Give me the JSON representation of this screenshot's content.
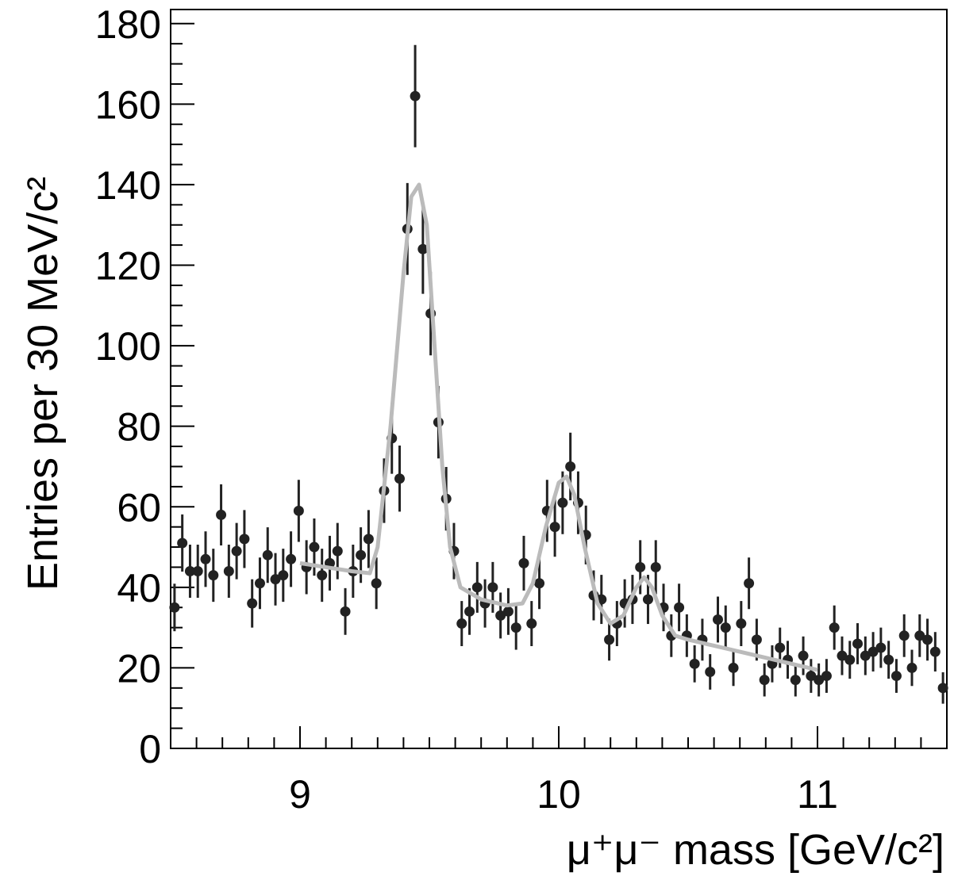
{
  "chart_data": {
    "type": "scatter",
    "xlabel": "μ⁺μ⁻ mass [GeV/c²]",
    "ylabel": "Entries per 30 MeV/c²",
    "xlim": [
      8.5,
      11.5
    ],
    "ylim": [
      0,
      183.5
    ],
    "xticks": [
      9,
      10,
      11
    ],
    "yticks": [
      0,
      20,
      40,
      60,
      80,
      100,
      120,
      140,
      160,
      180
    ],
    "xminorticks": [
      8.6,
      8.7,
      8.8,
      8.9,
      9.1,
      9.2,
      9.3,
      9.4,
      9.5,
      9.6,
      9.7,
      9.8,
      9.9,
      10.1,
      10.2,
      10.3,
      10.4,
      10.5,
      10.6,
      10.7,
      10.8,
      10.9,
      11.1,
      11.2,
      11.3,
      11.4
    ],
    "yminorticks": [
      5,
      10,
      15,
      25,
      30,
      35,
      45,
      50,
      55,
      65,
      70,
      75,
      85,
      90,
      95,
      105,
      110,
      115,
      125,
      130,
      135,
      145,
      150,
      155,
      165,
      170,
      175
    ],
    "series": [
      {
        "color": "#222222",
        "x": [
          8.515,
          8.545,
          8.575,
          8.605,
          8.635,
          8.665,
          8.695,
          8.725,
          8.755,
          8.785,
          8.815,
          8.845,
          8.875,
          8.905,
          8.935,
          8.965,
          8.995,
          9.025,
          9.055,
          9.085,
          9.115,
          9.145,
          9.175,
          9.205,
          9.235,
          9.265,
          9.295,
          9.325,
          9.355,
          9.385,
          9.415,
          9.445,
          9.475,
          9.505,
          9.535,
          9.565,
          9.595,
          9.625,
          9.655,
          9.685,
          9.715,
          9.745,
          9.775,
          9.805,
          9.835,
          9.865,
          9.895,
          9.925,
          9.955,
          9.985,
          10.015,
          10.045,
          10.075,
          10.105,
          10.135,
          10.165,
          10.195,
          10.225,
          10.255,
          10.285,
          10.315,
          10.345,
          10.375,
          10.405,
          10.435,
          10.465,
          10.495,
          10.525,
          10.555,
          10.585,
          10.615,
          10.645,
          10.675,
          10.705,
          10.735,
          10.765,
          10.795,
          10.825,
          10.855,
          10.885,
          10.915,
          10.945,
          10.975,
          11.005,
          11.035,
          11.065,
          11.095,
          11.125,
          11.155,
          11.185,
          11.215,
          11.245,
          11.275,
          11.305,
          11.335,
          11.365,
          11.395,
          11.425,
          11.455,
          11.485
        ],
        "values": [
          35,
          51,
          44,
          44,
          47,
          43,
          58,
          44,
          49,
          52,
          36,
          41,
          48,
          42,
          43,
          47,
          59,
          45,
          50,
          43,
          46,
          49,
          34,
          44,
          48,
          52,
          41,
          64,
          77,
          67,
          129,
          162,
          124,
          108,
          81,
          62,
          49,
          31,
          34,
          40,
          36,
          40,
          33,
          34,
          30,
          46,
          31,
          41,
          59,
          55,
          61,
          70,
          61,
          53,
          38,
          37,
          27,
          31,
          36,
          37,
          45,
          37,
          45,
          35,
          28,
          35,
          28,
          21,
          27,
          19,
          32,
          30,
          20,
          31,
          41,
          27,
          17,
          21,
          25,
          22,
          17,
          23,
          18,
          17,
          18,
          30,
          23,
          22,
          26,
          23,
          24,
          25,
          22,
          18,
          28,
          20,
          28,
          27,
          24,
          15
        ],
        "errors": [
          5.9,
          7.1,
          6.6,
          6.6,
          6.9,
          6.6,
          7.6,
          6.6,
          7.0,
          7.2,
          6.0,
          6.4,
          6.9,
          6.5,
          6.6,
          6.9,
          7.7,
          6.7,
          7.1,
          6.6,
          6.8,
          7.0,
          5.8,
          6.6,
          6.9,
          7.2,
          6.4,
          8.0,
          8.8,
          8.2,
          11.4,
          12.7,
          11.1,
          10.4,
          9.0,
          7.9,
          7.0,
          5.6,
          5.8,
          6.3,
          6.0,
          6.3,
          5.7,
          5.8,
          5.5,
          6.8,
          5.6,
          6.4,
          7.7,
          7.4,
          7.8,
          8.4,
          7.8,
          7.3,
          6.2,
          6.1,
          5.2,
          5.6,
          6.0,
          6.1,
          6.7,
          6.1,
          6.7,
          5.9,
          5.3,
          5.9,
          5.3,
          4.6,
          5.2,
          4.4,
          5.7,
          5.5,
          4.5,
          5.6,
          6.4,
          5.2,
          4.1,
          4.6,
          5.0,
          4.7,
          4.1,
          4.8,
          4.2,
          4.1,
          4.2,
          5.5,
          4.8,
          4.7,
          5.1,
          4.8,
          4.9,
          5.0,
          4.7,
          4.2,
          5.3,
          4.5,
          5.3,
          5.2,
          4.9,
          3.9
        ]
      },
      {
        "color": "#bbbbbb",
        "x": [
          9.0,
          9.1,
          9.2,
          9.27,
          9.3,
          9.35,
          9.4,
          9.43,
          9.46,
          9.49,
          9.52,
          9.55,
          9.58,
          9.62,
          9.7,
          9.8,
          9.86,
          9.9,
          9.95,
          10.0,
          10.03,
          10.06,
          10.1,
          10.15,
          10.2,
          10.25,
          10.3,
          10.33,
          10.36,
          10.4,
          10.45,
          10.5,
          10.6,
          10.7,
          10.8,
          10.9,
          11.0
        ],
        "values": [
          46,
          45,
          44,
          43.5,
          50,
          80,
          118,
          137,
          140,
          130,
          100,
          70,
          50,
          40,
          37,
          35.5,
          36,
          41,
          55,
          66,
          67.5,
          63,
          50,
          36,
          31,
          33,
          40,
          42.5,
          40,
          33,
          28,
          27,
          25.5,
          24,
          22.5,
          21,
          19.5
        ]
      }
    ]
  }
}
